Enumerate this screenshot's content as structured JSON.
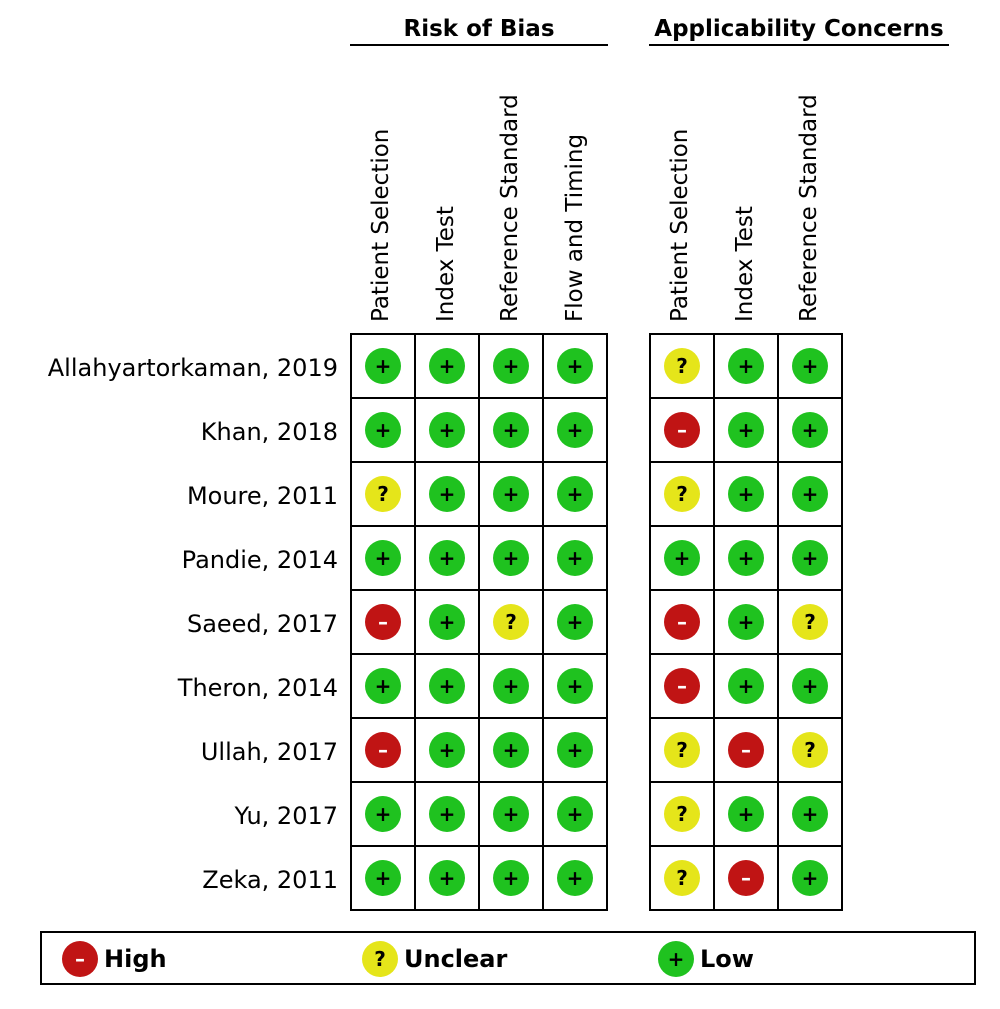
{
  "chart_data": {
    "type": "table",
    "groups": [
      {
        "title": "Risk of Bias",
        "columns": [
          "Patient Selection",
          "Index Test",
          "Reference Standard",
          "Flow and Timing"
        ]
      },
      {
        "title": "Applicability Concerns",
        "columns": [
          "Patient Selection",
          "Index Test",
          "Reference Standard"
        ]
      }
    ],
    "studies": [
      {
        "name": "Allahyartorkaman, 2019",
        "risk": [
          "low",
          "low",
          "low",
          "low"
        ],
        "applicability": [
          "unclear",
          "low",
          "low"
        ]
      },
      {
        "name": "Khan, 2018",
        "risk": [
          "low",
          "low",
          "low",
          "low"
        ],
        "applicability": [
          "high",
          "low",
          "low"
        ]
      },
      {
        "name": "Moure, 2011",
        "risk": [
          "unclear",
          "low",
          "low",
          "low"
        ],
        "applicability": [
          "unclear",
          "low",
          "low"
        ]
      },
      {
        "name": "Pandie, 2014",
        "risk": [
          "low",
          "low",
          "low",
          "low"
        ],
        "applicability": [
          "low",
          "low",
          "low"
        ]
      },
      {
        "name": "Saeed, 2017",
        "risk": [
          "high",
          "low",
          "unclear",
          "low"
        ],
        "applicability": [
          "high",
          "low",
          "unclear"
        ]
      },
      {
        "name": "Theron, 2014",
        "risk": [
          "low",
          "low",
          "low",
          "low"
        ],
        "applicability": [
          "high",
          "low",
          "low"
        ]
      },
      {
        "name": "Ullah, 2017",
        "risk": [
          "high",
          "low",
          "low",
          "low"
        ],
        "applicability": [
          "unclear",
          "high",
          "unclear"
        ]
      },
      {
        "name": "Yu, 2017",
        "risk": [
          "low",
          "low",
          "low",
          "low"
        ],
        "applicability": [
          "unclear",
          "low",
          "low"
        ]
      },
      {
        "name": "Zeka, 2011",
        "risk": [
          "low",
          "low",
          "low",
          "low"
        ],
        "applicability": [
          "unclear",
          "high",
          "low"
        ]
      }
    ],
    "symbols": {
      "low": "+",
      "unclear": "?",
      "high": "–"
    },
    "colors": {
      "low": "#1fc21f",
      "unclear": "#e5e51a",
      "high": "#c01414"
    },
    "legend": [
      {
        "key": "high",
        "label": "High"
      },
      {
        "key": "unclear",
        "label": "Unclear"
      },
      {
        "key": "low",
        "label": "Low"
      }
    ]
  }
}
